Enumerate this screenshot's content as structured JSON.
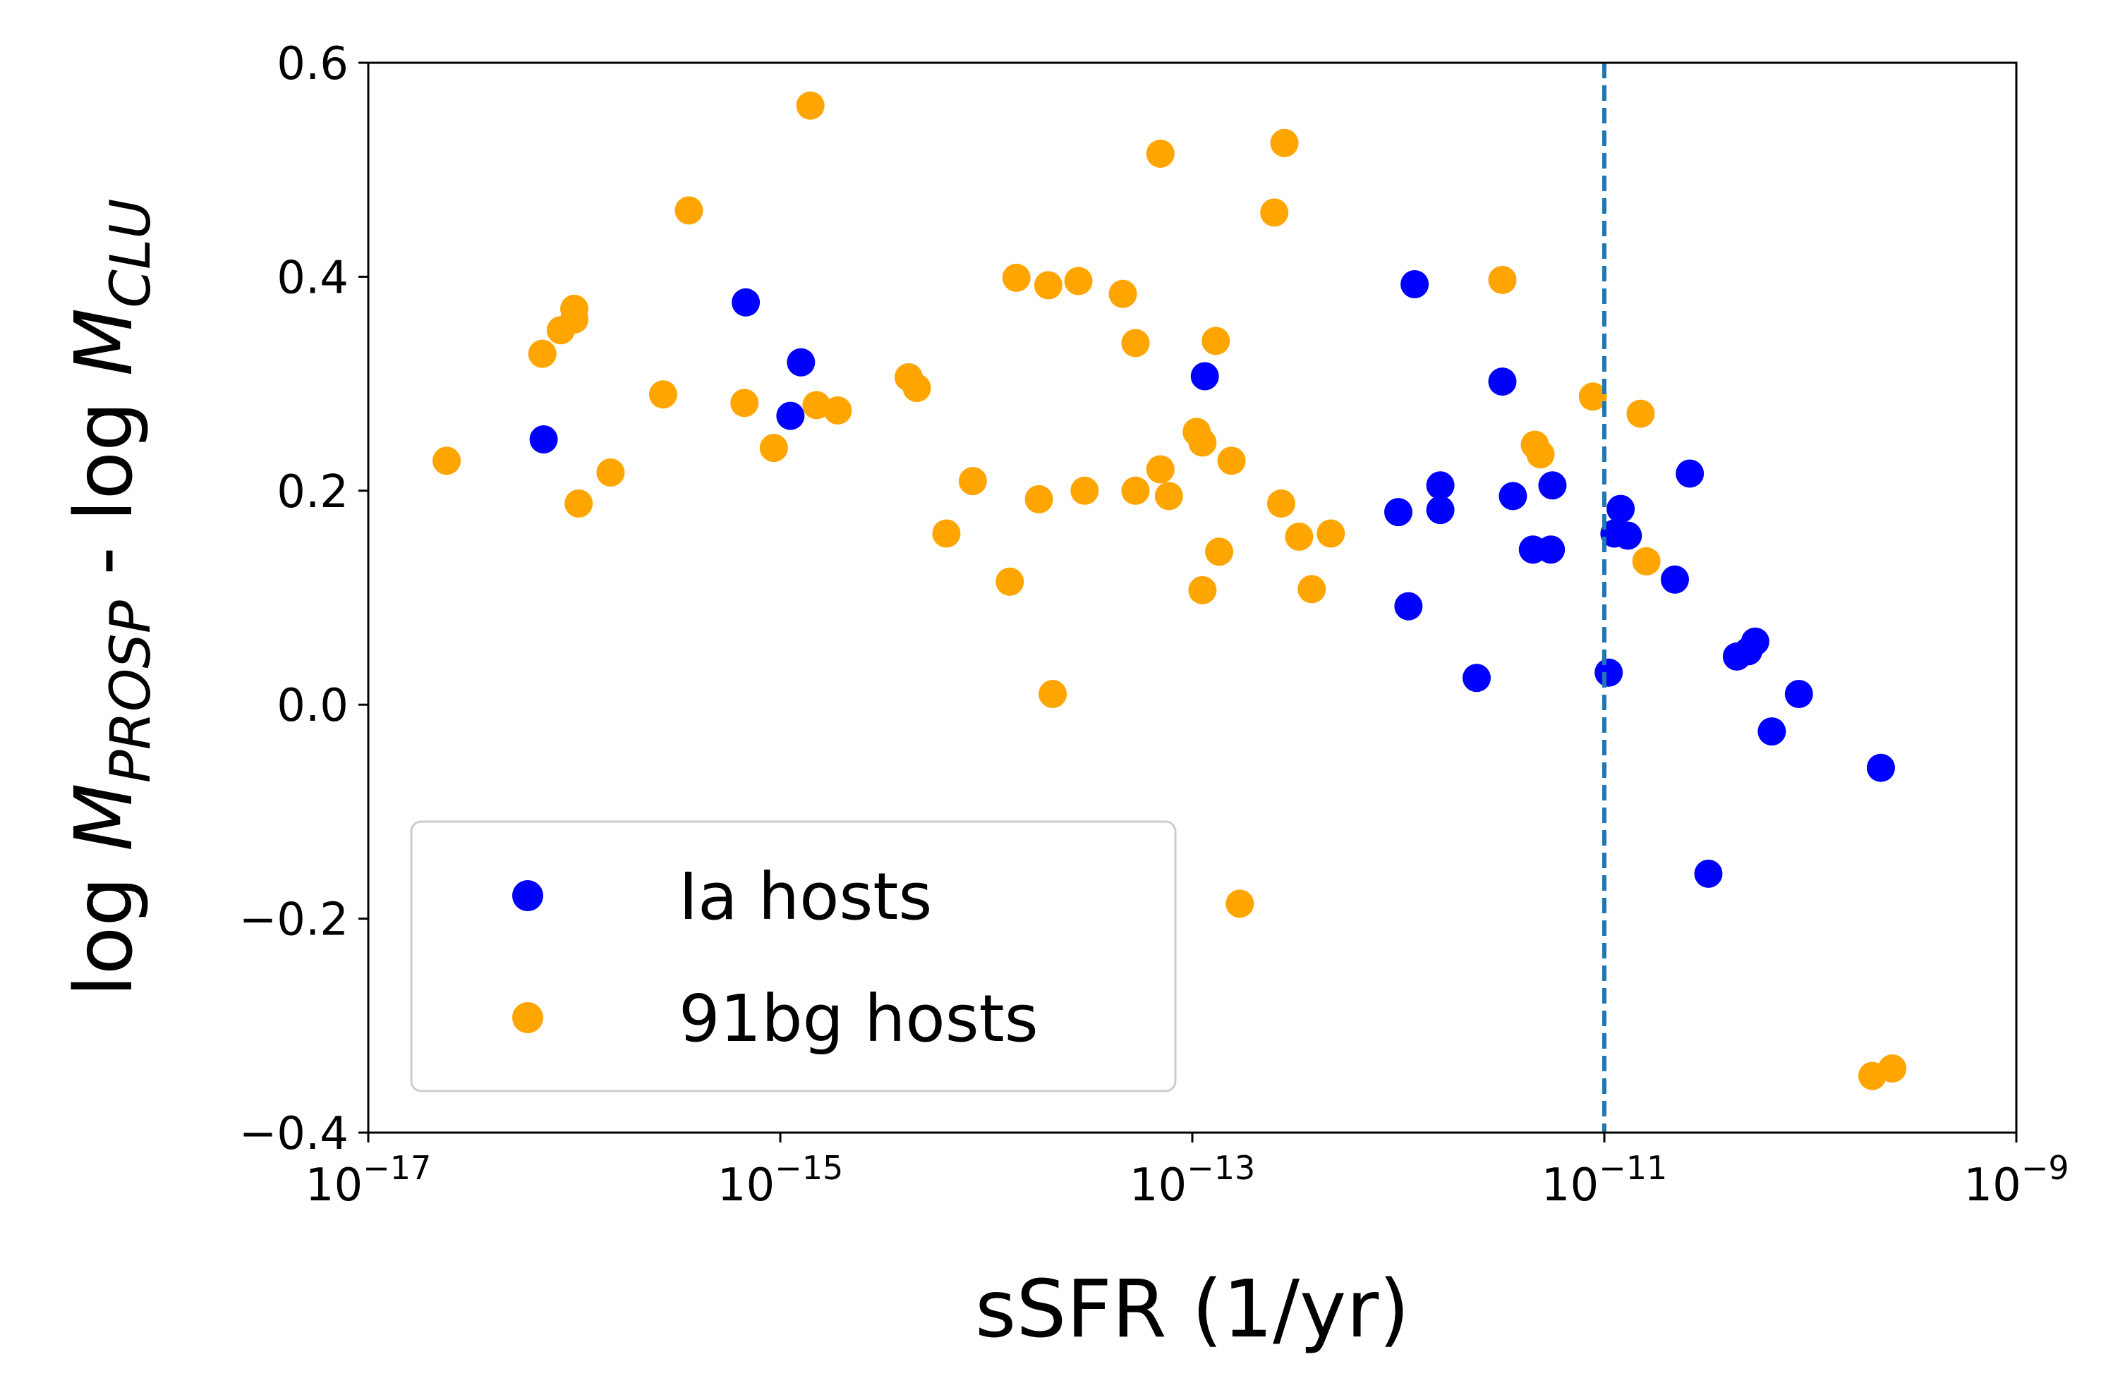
{
  "chart_data": {
    "type": "scatter",
    "xlabel": "sSFR (1/yr)",
    "ylabel": {
      "parts": [
        {
          "text": "log "
        },
        {
          "text": "M",
          "italic": true
        },
        {
          "text": "PROSP",
          "italic": true,
          "sub": true
        },
        {
          "text": " - log "
        },
        {
          "text": "M",
          "italic": true
        },
        {
          "text": "CLU",
          "italic": true,
          "sub": true
        }
      ]
    },
    "x_scale": "log",
    "xlim": [
      1e-17,
      1e-09
    ],
    "ylim": [
      -0.4,
      0.6
    ],
    "x_ticks": [
      {
        "value": 1e-17,
        "base": "10",
        "exp": "−17"
      },
      {
        "value": 1e-15,
        "base": "10",
        "exp": "−15"
      },
      {
        "value": 1e-13,
        "base": "10",
        "exp": "−13"
      },
      {
        "value": 1e-11,
        "base": "10",
        "exp": "−11"
      },
      {
        "value": 1e-09,
        "base": "10",
        "exp": "−9"
      }
    ],
    "y_ticks": [
      {
        "value": 0.6,
        "label": "0.6"
      },
      {
        "value": 0.4,
        "label": "0.4"
      },
      {
        "value": 0.2,
        "label": "0.2"
      },
      {
        "value": 0.0,
        "label": "0.0"
      },
      {
        "value": -0.2,
        "label": "−0.2"
      },
      {
        "value": -0.4,
        "label": "−0.4"
      }
    ],
    "grid": false,
    "legend": {
      "position": "lower-left"
    },
    "reference_line": {
      "orientation": "vertical",
      "x": 1e-11,
      "style": "dashed",
      "color": "#1f77b4"
    },
    "series": [
      {
        "name": "Ia hosts",
        "color": "#0000ff",
        "points": [
          [
            7.1e-17,
            0.248
          ],
          [
            6.8e-16,
            0.376
          ],
          [
            1.26e-15,
            0.32
          ],
          [
            1.12e-15,
            0.27
          ],
          [
            1.15e-13,
            0.307
          ],
          [
            1e-12,
            0.18
          ],
          [
            1.12e-12,
            0.092
          ],
          [
            1.2e-12,
            0.393
          ],
          [
            1.6e-12,
            0.205
          ],
          [
            1.6e-12,
            0.182
          ],
          [
            2.4e-12,
            0.025
          ],
          [
            3.2e-12,
            0.302
          ],
          [
            3.6e-12,
            0.195
          ],
          [
            4.5e-12,
            0.145
          ],
          [
            5.5e-12,
            0.145
          ],
          [
            5.6e-12,
            0.205
          ],
          [
            1.05e-11,
            0.03
          ],
          [
            1.12e-11,
            0.16
          ],
          [
            1.2e-11,
            0.183
          ],
          [
            1.3e-11,
            0.158
          ],
          [
            2.2e-11,
            0.117
          ],
          [
            2.6e-11,
            0.216
          ],
          [
            3.2e-11,
            -0.158
          ],
          [
            4.4e-11,
            0.045
          ],
          [
            5e-11,
            0.05
          ],
          [
            5.4e-11,
            0.059
          ],
          [
            6.5e-11,
            -0.025
          ],
          [
            8.8e-11,
            0.01
          ],
          [
            2.2e-10,
            -0.059
          ]
        ]
      },
      {
        "name": "91bg hosts",
        "color": "#ffa500",
        "points": [
          [
            2.4e-17,
            0.228
          ],
          [
            7e-17,
            0.328
          ],
          [
            8.6e-17,
            0.35
          ],
          [
            1e-16,
            0.37
          ],
          [
            1e-16,
            0.36
          ],
          [
            1.05e-16,
            0.188
          ],
          [
            1.5e-16,
            0.217
          ],
          [
            2.7e-16,
            0.29
          ],
          [
            3.6e-16,
            0.462
          ],
          [
            6.7e-16,
            0.282
          ],
          [
            9.3e-16,
            0.24
          ],
          [
            1.4e-15,
            0.56
          ],
          [
            1.5e-15,
            0.28
          ],
          [
            1.9e-15,
            0.275
          ],
          [
            4.2e-15,
            0.306
          ],
          [
            4.6e-15,
            0.296
          ],
          [
            6.4e-15,
            0.16
          ],
          [
            8.6e-15,
            0.209
          ],
          [
            1.3e-14,
            0.115
          ],
          [
            1.4e-14,
            0.399
          ],
          [
            1.8e-14,
            0.192
          ],
          [
            2e-14,
            0.392
          ],
          [
            2.1e-14,
            0.01
          ],
          [
            2.8e-14,
            0.396
          ],
          [
            3e-14,
            0.2
          ],
          [
            4.6e-14,
            0.384
          ],
          [
            5.3e-14,
            0.2
          ],
          [
            5.3e-14,
            0.338
          ],
          [
            7e-14,
            0.22
          ],
          [
            7e-14,
            0.515
          ],
          [
            7.7e-14,
            0.195
          ],
          [
            1.05e-13,
            0.255
          ],
          [
            1.12e-13,
            0.245
          ],
          [
            1.12e-13,
            0.107
          ],
          [
            1.3e-13,
            0.34
          ],
          [
            1.35e-13,
            0.143
          ],
          [
            1.55e-13,
            0.228
          ],
          [
            1.7e-13,
            -0.186
          ],
          [
            2.5e-13,
            0.46
          ],
          [
            2.7e-13,
            0.188
          ],
          [
            2.8e-13,
            0.525
          ],
          [
            3.3e-13,
            0.157
          ],
          [
            3.8e-13,
            0.108
          ],
          [
            4.7e-13,
            0.16
          ],
          [
            3.2e-12,
            0.397
          ],
          [
            4.6e-12,
            0.243
          ],
          [
            4.9e-12,
            0.234
          ],
          [
            8.8e-12,
            0.288
          ],
          [
            1.5e-11,
            0.272
          ],
          [
            1.6e-11,
            0.134
          ],
          [
            2e-10,
            -0.347
          ],
          [
            2.5e-10,
            -0.34
          ]
        ]
      }
    ]
  }
}
